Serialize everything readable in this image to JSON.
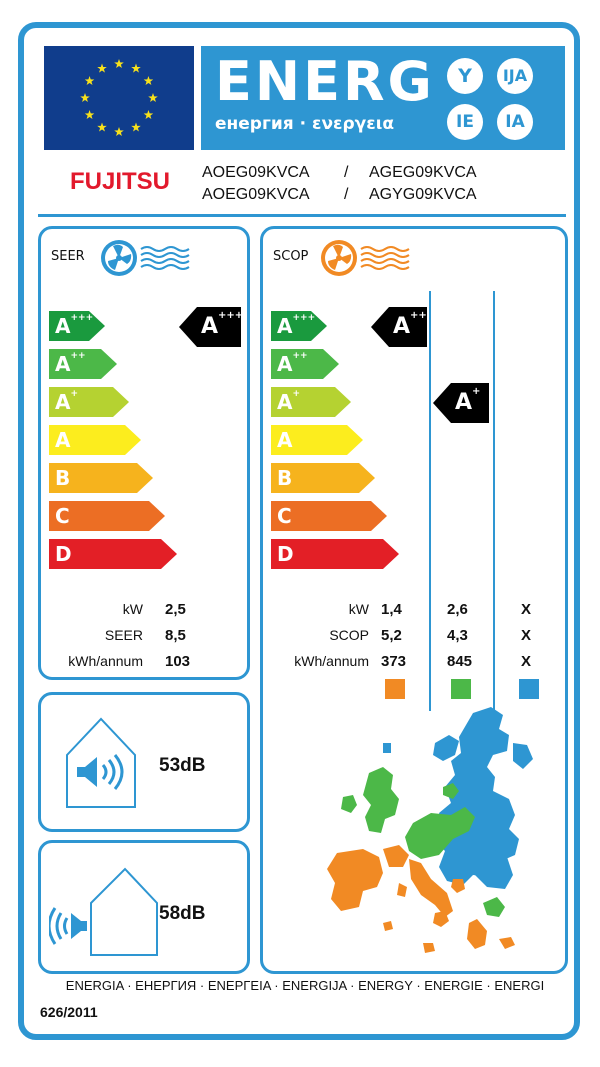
{
  "header": {
    "energ_word": "ENERG",
    "energ_sub": "енергия · ενεργεια",
    "circles": [
      "Y",
      "IJA",
      "IE",
      "IA"
    ],
    "colors": {
      "blue": "#2e96d2",
      "flag": "#103d8c",
      "star": "#f7e11c"
    }
  },
  "brand": {
    "name": "FUJITSU",
    "color": "#e2192c"
  },
  "models": {
    "row1": {
      "indoor": "AOEG09KVCA",
      "sep": "/",
      "outdoor": "AGEG09KVCA"
    },
    "row2": {
      "indoor": "AOEG09KVCA",
      "sep": "/",
      "outdoor": "AGYG09KVCA"
    }
  },
  "scale": {
    "classes": [
      {
        "letter": "A",
        "sup": "+++",
        "color": "#1a9a3e"
      },
      {
        "letter": "A",
        "sup": "++",
        "color": "#4cb848"
      },
      {
        "letter": "A",
        "sup": "+",
        "color": "#b5d231"
      },
      {
        "letter": "A",
        "sup": "",
        "color": "#fced1e"
      },
      {
        "letter": "B",
        "sup": "",
        "color": "#f6b31d"
      },
      {
        "letter": "C",
        "sup": "",
        "color": "#ec6e24"
      },
      {
        "letter": "D",
        "sup": "",
        "color": "#e31f26"
      }
    ]
  },
  "seer": {
    "title": "SEER",
    "fan_icon": "snowflake-fan-icon",
    "rating": {
      "letter": "A",
      "sup": "+++"
    },
    "rows": [
      {
        "label": "kW",
        "value": "2,5"
      },
      {
        "label": "SEER",
        "value": "8,5"
      },
      {
        "label": "kWh/annum",
        "value": "103"
      }
    ]
  },
  "scop": {
    "title": "SCOP",
    "fan_icon": "sun-fan-icon",
    "ratings": [
      {
        "letter": "A",
        "sup": "+++"
      },
      {
        "letter": "A",
        "sup": "+"
      }
    ],
    "rows": [
      {
        "label": "kW",
        "values": [
          "1,4",
          "2,6",
          "X"
        ]
      },
      {
        "label": "SCOP",
        "values": [
          "5,2",
          "4,3",
          "X"
        ]
      },
      {
        "label": "kWh/annum",
        "values": [
          "373",
          "845",
          "X"
        ]
      }
    ],
    "zone_colors": [
      "#f18a24",
      "#4cb848",
      "#2e96d2"
    ]
  },
  "noise": {
    "indoor": {
      "value": "53dB",
      "icon": "indoor-sound-house-icon"
    },
    "outdoor": {
      "value": "58dB",
      "icon": "outdoor-sound-house-icon"
    }
  },
  "footer": {
    "energy_words": "ENERGIA · ЕНЕРГИЯ · ΕΝΕΡΓΕΙΑ · ENERGIJA · ENERGY · ENERGIE · ENERGI",
    "regulation": "626/2011"
  }
}
